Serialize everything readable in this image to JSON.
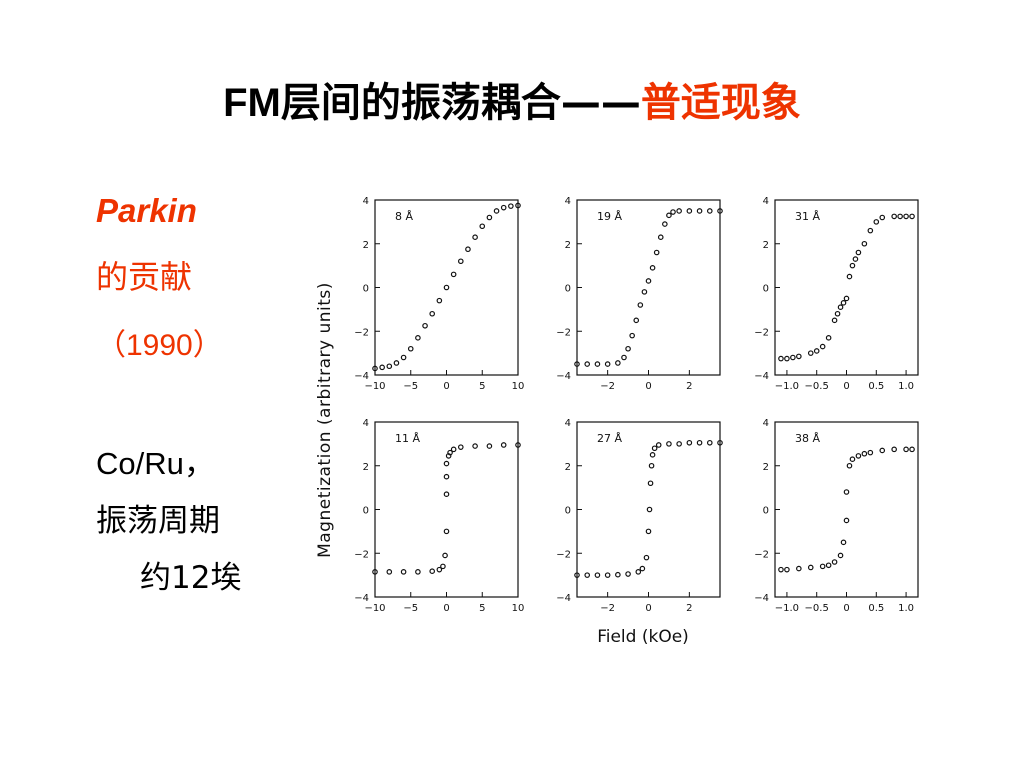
{
  "title": {
    "prefix": "FM",
    "main": "层间的振荡耦合——",
    "accent": "普适现象"
  },
  "sidebar": {
    "author": "Parkin",
    "contribution": "的贡献",
    "year": "（1990）",
    "system": "Co/Ru，",
    "period_label": "振荡周期",
    "period_value": "约12埃"
  },
  "colors": {
    "accent": "#ee3300",
    "ink": "#111111"
  },
  "chart_data": [
    {
      "type": "scatter",
      "label": "8 Å",
      "xlim": [
        -10,
        10
      ],
      "ylim": [
        -4,
        4
      ],
      "xticks": [
        "−10",
        "−5",
        "0",
        "5",
        "10"
      ],
      "yticks": [
        "4",
        "2",
        "0",
        "−2",
        "−4"
      ],
      "x": [
        -10,
        -9,
        -8,
        -7,
        -6,
        -5,
        -4,
        -3,
        -2,
        -1,
        0,
        1,
        2,
        3,
        4,
        5,
        6,
        7,
        8,
        9,
        10
      ],
      "y": [
        -3.7,
        -3.65,
        -3.6,
        -3.45,
        -3.2,
        -2.8,
        -2.3,
        -1.75,
        -1.2,
        -0.6,
        0,
        0.6,
        1.2,
        1.75,
        2.3,
        2.8,
        3.2,
        3.5,
        3.65,
        3.72,
        3.75
      ]
    },
    {
      "type": "scatter",
      "label": "19 Å",
      "xlim": [
        -3.5,
        3.5
      ],
      "ylim": [
        -4,
        4
      ],
      "xticks": [
        "−2",
        "0",
        "2"
      ],
      "yticks": [
        "4",
        "2",
        "0",
        "−2",
        "−4"
      ],
      "x": [
        -3.5,
        -3,
        -2.5,
        -2,
        -1.5,
        -1.2,
        -1,
        -0.8,
        -0.6,
        -0.4,
        -0.2,
        0,
        0.2,
        0.4,
        0.6,
        0.8,
        1,
        1.2,
        1.5,
        2,
        2.5,
        3,
        3.5
      ],
      "y": [
        -3.5,
        -3.5,
        -3.5,
        -3.5,
        -3.45,
        -3.2,
        -2.8,
        -2.2,
        -1.5,
        -0.8,
        -0.2,
        0.3,
        0.9,
        1.6,
        2.3,
        2.9,
        3.3,
        3.45,
        3.5,
        3.5,
        3.5,
        3.5,
        3.5
      ]
    },
    {
      "type": "scatter",
      "label": "31 Å",
      "xlim": [
        -1.2,
        1.2
      ],
      "ylim": [
        -4,
        4
      ],
      "xticks": [
        "−1.0",
        "−0.5",
        "0",
        "0.5",
        "1.0"
      ],
      "yticks": [
        "4",
        "2",
        "0",
        "−2",
        "−4"
      ],
      "x": [
        -1.1,
        -1,
        -0.9,
        -0.8,
        -0.6,
        -0.5,
        -0.4,
        -0.3,
        -0.2,
        -0.15,
        -0.1,
        -0.05,
        0,
        0.05,
        0.1,
        0.15,
        0.2,
        0.3,
        0.4,
        0.5,
        0.6,
        0.8,
        0.9,
        1,
        1.1
      ],
      "y": [
        -3.25,
        -3.25,
        -3.2,
        -3.15,
        -3.0,
        -2.9,
        -2.7,
        -2.3,
        -1.5,
        -1.2,
        -0.9,
        -0.7,
        -0.5,
        0.5,
        1.0,
        1.3,
        1.6,
        2.0,
        2.6,
        3.0,
        3.2,
        3.25,
        3.25,
        3.25,
        3.25
      ]
    },
    {
      "type": "scatter",
      "label": "11 Å",
      "xlim": [
        -10,
        10
      ],
      "ylim": [
        -4,
        4
      ],
      "xticks": [
        "−10",
        "−5",
        "0",
        "5",
        "10"
      ],
      "yticks": [
        "4",
        "2",
        "0",
        "−2",
        "−4"
      ],
      "x": [
        -10,
        -8,
        -6,
        -4,
        -2,
        -1,
        -0.5,
        -0.2,
        0,
        0,
        0,
        0,
        0.3,
        0.5,
        1,
        2,
        4,
        6,
        8,
        10
      ],
      "y": [
        -2.85,
        -2.85,
        -2.85,
        -2.85,
        -2.82,
        -2.75,
        -2.6,
        -2.1,
        -1.0,
        0.7,
        1.5,
        2.1,
        2.45,
        2.6,
        2.75,
        2.85,
        2.9,
        2.9,
        2.95,
        2.95
      ]
    },
    {
      "type": "scatter",
      "label": "27 Å",
      "xlim": [
        -3.5,
        3.5
      ],
      "ylim": [
        -4,
        4
      ],
      "xticks": [
        "−2",
        "0",
        "2"
      ],
      "yticks": [
        "4",
        "2",
        "0",
        "−2",
        "−4"
      ],
      "x": [
        -3.5,
        -3,
        -2.5,
        -2,
        -1.5,
        -1,
        -0.5,
        -0.3,
        -0.1,
        0,
        0.05,
        0.1,
        0.15,
        0.2,
        0.3,
        0.5,
        1,
        1.5,
        2,
        2.5,
        3,
        3.5
      ],
      "y": [
        -3.0,
        -3.0,
        -3.0,
        -3.0,
        -2.98,
        -2.95,
        -2.85,
        -2.7,
        -2.2,
        -1.0,
        0,
        1.2,
        2.0,
        2.5,
        2.8,
        2.95,
        3.0,
        3.0,
        3.05,
        3.05,
        3.05,
        3.05
      ]
    },
    {
      "type": "scatter",
      "label": "38 Å",
      "xlim": [
        -1.2,
        1.2
      ],
      "ylim": [
        -4,
        4
      ],
      "xticks": [
        "−1.0",
        "−0.5",
        "0",
        "0.5",
        "1.0"
      ],
      "yticks": [
        "4",
        "2",
        "0",
        "−2",
        "−4"
      ],
      "x": [
        -1.1,
        -1,
        -0.8,
        -0.6,
        -0.4,
        -0.3,
        -0.2,
        -0.1,
        -0.05,
        0,
        0,
        0.05,
        0.1,
        0.2,
        0.3,
        0.4,
        0.6,
        0.8,
        1,
        1.1
      ],
      "y": [
        -2.75,
        -2.75,
        -2.7,
        -2.65,
        -2.6,
        -2.55,
        -2.4,
        -2.1,
        -1.5,
        -0.5,
        0.8,
        2.0,
        2.3,
        2.45,
        2.55,
        2.6,
        2.7,
        2.75,
        2.75,
        2.75
      ]
    }
  ],
  "axis": {
    "xlabel": "Field (kOe)",
    "ylabel": "Magnetization (arbitrary units)"
  }
}
